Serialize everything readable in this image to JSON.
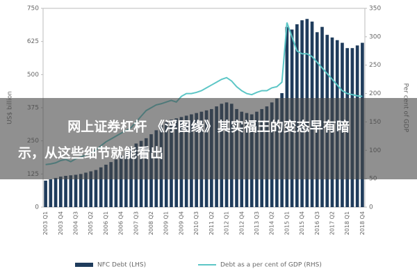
{
  "chart_data": {
    "type": "bar_line",
    "y_label": "US$ billion",
    "y2_label": "Per cent of GDP",
    "categories": [
      "2003 Q1",
      null,
      null,
      "2003 Q4",
      null,
      null,
      "2004 Q3",
      null,
      null,
      "2005 Q2",
      null,
      null,
      "2006 Q1",
      null,
      null,
      "2006 Q4",
      null,
      null,
      "2007 Q3",
      null,
      null,
      "2008 Q2",
      null,
      null,
      "2009 Q1",
      null,
      null,
      "2009 Q4",
      null,
      null,
      "2010 Q3",
      null,
      null,
      "2011 Q2",
      null,
      null,
      "2012 Q1",
      null,
      null,
      "2012 Q4",
      null,
      null,
      "2013 Q3",
      null,
      null,
      "2014 Q2",
      null,
      null,
      "2015 Q1",
      null,
      null,
      "2015 Q4",
      null,
      null,
      "2016 Q3",
      null,
      null,
      "2017 Q2",
      null,
      null,
      "2018 Q1",
      null,
      null,
      "2018 Q4"
    ],
    "series": [
      {
        "name": "NFC Debt (LHS)",
        "color": "#1f3c5c",
        "kind": "bar",
        "values": [
          100,
          105,
          110,
          115,
          118,
          120,
          122,
          125,
          130,
          135,
          140,
          150,
          160,
          170,
          180,
          195,
          210,
          225,
          240,
          250,
          260,
          275,
          290,
          310,
          320,
          330,
          335,
          340,
          345,
          350,
          355,
          360,
          365,
          370,
          380,
          390,
          395,
          390,
          370,
          360,
          355,
          350,
          360,
          370,
          380,
          395,
          410,
          430,
          680,
          670,
          690,
          705,
          710,
          700,
          660,
          680,
          650,
          640,
          630,
          620,
          600,
          600,
          610,
          620
        ]
      },
      {
        "name": "Debt as a per cent of GDP (RHS)",
        "color": "#5cc6c6",
        "kind": "line",
        "axis": "y2",
        "values": [
          75,
          76,
          78,
          82,
          84,
          80,
          85,
          88,
          92,
          95,
          100,
          108,
          115,
          120,
          125,
          130,
          135,
          140,
          150,
          160,
          170,
          175,
          180,
          182,
          185,
          188,
          185,
          195,
          200,
          200,
          202,
          205,
          210,
          215,
          220,
          225,
          228,
          222,
          212,
          205,
          200,
          198,
          202,
          205,
          205,
          210,
          212,
          220,
          325,
          300,
          275,
          270,
          270,
          265,
          255,
          245,
          235,
          225,
          215,
          205,
          200,
          198,
          196,
          195
        ]
      }
    ],
    "ylim": [
      0,
      750
    ],
    "yticks": [
      0,
      125,
      250,
      375,
      500,
      625,
      750
    ],
    "y2lim": [
      0,
      350
    ],
    "y2ticks": [
      0,
      50,
      100,
      150,
      200,
      250,
      300,
      350
    ],
    "grid": false
  },
  "overlay": {
    "lines": [
      "网上证券杠杆 《浮图缘》其实福王的变态早有暗",
      "示，从这些细节就能看出"
    ]
  }
}
